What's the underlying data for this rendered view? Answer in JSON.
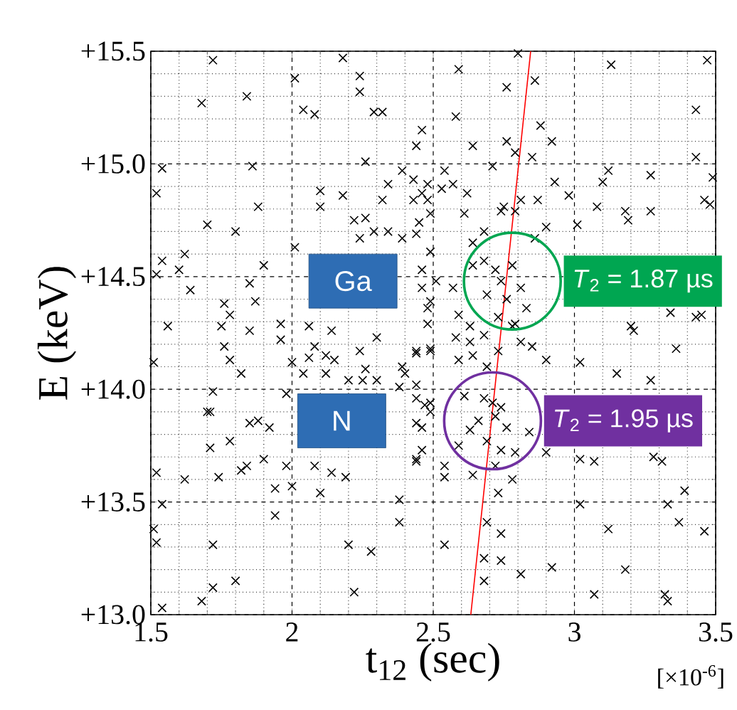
{
  "chart_data": {
    "type": "scatter",
    "xlabel": "t$_{12}$ (sec)",
    "ylabel": "E (keV)",
    "xlim": [
      1.5,
      3.5
    ],
    "ylim": [
      13.0,
      15.5
    ],
    "xticks": [
      1.5,
      2,
      2.5,
      3,
      3.5
    ],
    "yticks": [
      {
        "value": 13.0,
        "label": "+13.0"
      },
      {
        "value": 13.5,
        "label": "+13.5"
      },
      {
        "value": 14.0,
        "label": "+14.0"
      },
      {
        "value": 14.5,
        "label": "+14.5"
      },
      {
        "value": 15.0,
        "label": "+15.0"
      },
      {
        "value": 15.5,
        "label": "+15.5"
      }
    ],
    "grid": true,
    "marker": "cross",
    "annotations": [
      "Ga",
      "N",
      {
        "text": "*T*$_{2}$ = 1.87 µs",
        "x": 2.78,
        "y": 14.48
      },
      {
        "text": "*T*$_{2}$ = 1.95 µs",
        "x": 2.71,
        "y": 13.86
      },
      "[×10$^{-6}$]"
    ],
    "series": [
      {
        "color": "#000000",
        "x": [
          1.72,
          2.18,
          2.01,
          2.24,
          2.24,
          1.68,
          1.84,
          2.04,
          2.08,
          2.29,
          2.32,
          2.46,
          2.44,
          2.26,
          1.54,
          1.86,
          1.52,
          1.88,
          2.1,
          2.1,
          2.18,
          2.34,
          2.32,
          2.39,
          2.43,
          2.46,
          2.48,
          1.7,
          1.8,
          2.22,
          2.26,
          2.29,
          2.34,
          2.39,
          2.44,
          2.24,
          2.01,
          1.62,
          1.54,
          1.6,
          1.52,
          1.9,
          1.64,
          1.85,
          1.87,
          1.76,
          1.78,
          1.56,
          1.75,
          1.85,
          1.96,
          2.06,
          2.14,
          2.46,
          2.49,
          2.48,
          2.8,
          2.59,
          3.13,
          3.47,
          2.76,
          2.86,
          2.58,
          3.43,
          2.88,
          2.92,
          2.64,
          2.76,
          2.79,
          2.85,
          3.43,
          2.54,
          2.48,
          2.57,
          2.62,
          2.71,
          2.75,
          2.79,
          2.74,
          2.81,
          2.87,
          2.93,
          2.98,
          3.12,
          3.1,
          3.27,
          3.46,
          3.48,
          3.49,
          3.08,
          3.18,
          3.19,
          3.27,
          3.01,
          2.43,
          2.45,
          2.49,
          2.53,
          2.61,
          2.64,
          2.68,
          2.9,
          2.86,
          2.68,
          2.72,
          2.74,
          2.78,
          2.81,
          2.69,
          2.76,
          2.83,
          2.73,
          2.79,
          2.64,
          2.49,
          2.51,
          2.46,
          2.48,
          2.57,
          2.59,
          2.63,
          3.34,
          3.45,
          3.2,
          1.96,
          1.76,
          1.78,
          1.82,
          1.51,
          2.0,
          2.06,
          2.04,
          2.08,
          2.12,
          2.15,
          2.12,
          2.24,
          2.26,
          2.2,
          2.25,
          2.3,
          2.3,
          2.39,
          2.4,
          2.44,
          2.49,
          2.44,
          2.38,
          1.72,
          1.7,
          1.71,
          1.98,
          1.85,
          1.88,
          1.92,
          1.78,
          1.71,
          1.9,
          2.47,
          2.49,
          2.44,
          2.46,
          2.44,
          1.52,
          1.62,
          1.74,
          1.82,
          1.84,
          1.98,
          1.94,
          2.0,
          2.08,
          2.14,
          2.19,
          2.1,
          1.54,
          1.51,
          1.52,
          1.94,
          1.72,
          2.38,
          2.38,
          2.2,
          2.28,
          1.72,
          1.8,
          1.68,
          1.54,
          2.22,
          2.44,
          2.49,
          2.58,
          2.63,
          2.64,
          2.68,
          2.73,
          2.78,
          2.81,
          2.85,
          2.9,
          2.59,
          2.69,
          3.02,
          3.15,
          3.21,
          3.27,
          3.36,
          3.43,
          2.61,
          2.68,
          2.71,
          2.74,
          2.72,
          2.66,
          2.63,
          2.76,
          2.84,
          2.59,
          2.69,
          2.74,
          2.79,
          2.72,
          2.44,
          2.46,
          2.49,
          2.44,
          2.54,
          2.54,
          2.64,
          2.9,
          3.02,
          3.07,
          3.28,
          3.31,
          2.73,
          2.78,
          3.39,
          3.02,
          3.12,
          3.33,
          3.37,
          3.46,
          2.69,
          2.74,
          2.54,
          2.68,
          2.74,
          2.81,
          2.92,
          2.68,
          3.18,
          3.07,
          3.32,
          3.33
        ],
        "values": [
          15.46,
          15.47,
          15.38,
          15.39,
          15.32,
          15.27,
          15.3,
          15.24,
          15.22,
          15.23,
          15.23,
          15.15,
          15.08,
          15.01,
          14.98,
          14.99,
          14.87,
          14.81,
          14.88,
          14.81,
          14.86,
          14.91,
          14.84,
          14.97,
          14.93,
          14.87,
          14.84,
          14.73,
          14.7,
          14.75,
          14.76,
          14.7,
          14.7,
          14.67,
          14.69,
          14.67,
          14.63,
          14.6,
          14.57,
          14.53,
          14.51,
          14.55,
          14.44,
          14.47,
          14.39,
          14.38,
          14.33,
          14.28,
          14.28,
          14.26,
          14.29,
          14.28,
          14.26,
          14.45,
          14.39,
          14.29,
          15.49,
          15.42,
          15.44,
          15.46,
          15.34,
          15.37,
          15.21,
          15.24,
          15.17,
          15.1,
          15.08,
          15.1,
          15.05,
          15.03,
          15.03,
          14.97,
          14.91,
          14.91,
          14.87,
          14.99,
          14.81,
          14.79,
          14.79,
          14.84,
          14.84,
          14.92,
          14.86,
          14.97,
          14.92,
          14.95,
          14.84,
          14.82,
          14.94,
          14.81,
          14.79,
          14.75,
          14.79,
          14.73,
          14.84,
          14.74,
          14.78,
          14.89,
          14.78,
          14.65,
          14.7,
          14.72,
          14.67,
          14.57,
          14.53,
          14.48,
          14.55,
          14.45,
          14.42,
          14.4,
          14.36,
          14.32,
          14.29,
          14.55,
          14.61,
          14.48,
          14.53,
          14.36,
          14.45,
          14.33,
          14.28,
          14.34,
          14.33,
          14.28,
          14.22,
          14.19,
          14.13,
          14.07,
          14.12,
          14.12,
          14.14,
          14.07,
          14.19,
          14.15,
          14.13,
          14.07,
          14.17,
          14.09,
          14.04,
          14.04,
          14.23,
          14.04,
          14.1,
          14.07,
          14.16,
          14.18,
          14.02,
          14.01,
          13.99,
          13.9,
          13.9,
          13.98,
          13.85,
          13.86,
          13.83,
          13.77,
          13.74,
          13.69,
          13.93,
          13.9,
          13.85,
          13.73,
          13.68,
          13.63,
          13.6,
          13.61,
          13.64,
          13.66,
          13.66,
          13.56,
          13.57,
          13.66,
          13.63,
          13.61,
          13.54,
          13.49,
          13.38,
          13.32,
          13.44,
          13.31,
          13.51,
          13.41,
          13.31,
          13.28,
          13.12,
          13.15,
          13.06,
          13.03,
          13.1,
          14.17,
          14.17,
          14.23,
          14.21,
          14.15,
          14.24,
          14.17,
          14.28,
          14.21,
          14.19,
          14.13,
          14.13,
          14.1,
          14.12,
          14.07,
          14.26,
          14.04,
          14.18,
          14.32,
          13.97,
          13.96,
          13.94,
          13.92,
          13.88,
          13.86,
          13.82,
          13.83,
          13.81,
          13.75,
          13.77,
          13.73,
          13.72,
          13.66,
          13.96,
          13.83,
          13.94,
          13.69,
          13.66,
          13.61,
          13.62,
          13.72,
          13.69,
          13.68,
          13.7,
          13.68,
          13.54,
          13.6,
          13.55,
          13.49,
          13.38,
          13.49,
          13.41,
          13.37,
          13.41,
          13.36,
          13.31,
          13.25,
          13.24,
          13.18,
          13.21,
          13.15,
          13.2,
          13.09,
          13.09,
          13.06
        ]
      },
      {
        "type": "line",
        "color": "#ff0000",
        "marker": "none",
        "x": [
          2.633,
          2.845
        ],
        "values": [
          13.0,
          15.5
        ]
      }
    ]
  }
}
